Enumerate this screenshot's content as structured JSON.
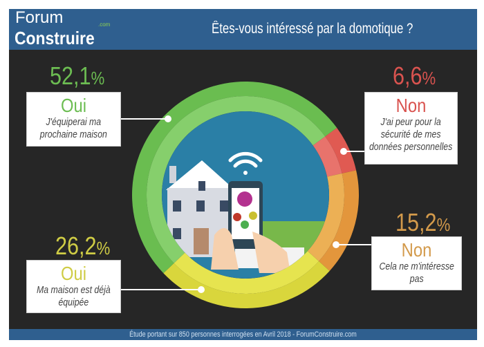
{
  "header": {
    "logo_line1": "Forum",
    "logo_line2": "Construire",
    "logo_com": ".com",
    "title": "Êtes-vous intéressé par la domotique ?"
  },
  "footer": {
    "text": "Étude portant sur 850 personnes interrogées en Avril 2018 - ForumConstruire.com"
  },
  "chart_data": {
    "type": "pie",
    "title": "Êtes-vous intéressé par la domotique ?",
    "start_angle_deg": 53.7,
    "slices": [
      {
        "id": "red",
        "answer": "Non",
        "label": "J'ai peur pour la sécurité de mes données personnelles",
        "value": 6.6,
        "display": "6,6",
        "color": "#e05a52",
        "light": "#e8736c"
      },
      {
        "id": "orange",
        "answer": "Non",
        "label": "Cela ne m'intéresse pas",
        "value": 15.2,
        "display": "15,2",
        "color": "#e3963c",
        "light": "#ecb055"
      },
      {
        "id": "yellow",
        "answer": "Oui",
        "label": "Ma maison est déjà équipée",
        "value": 26.2,
        "display": "26,2",
        "color": "#d9d63c",
        "light": "#e6e44f"
      },
      {
        "id": "green",
        "answer": "Oui",
        "label": "J'équiperai ma prochaine maison",
        "value": 52.1,
        "display": "52,1",
        "color": "#6abd50",
        "light": "#86cf6c"
      }
    ],
    "text_colors": {
      "green": "#6cbd52",
      "red": "#d9534f",
      "orange": "#d39a4b",
      "yellow": "#cfcc45"
    }
  }
}
